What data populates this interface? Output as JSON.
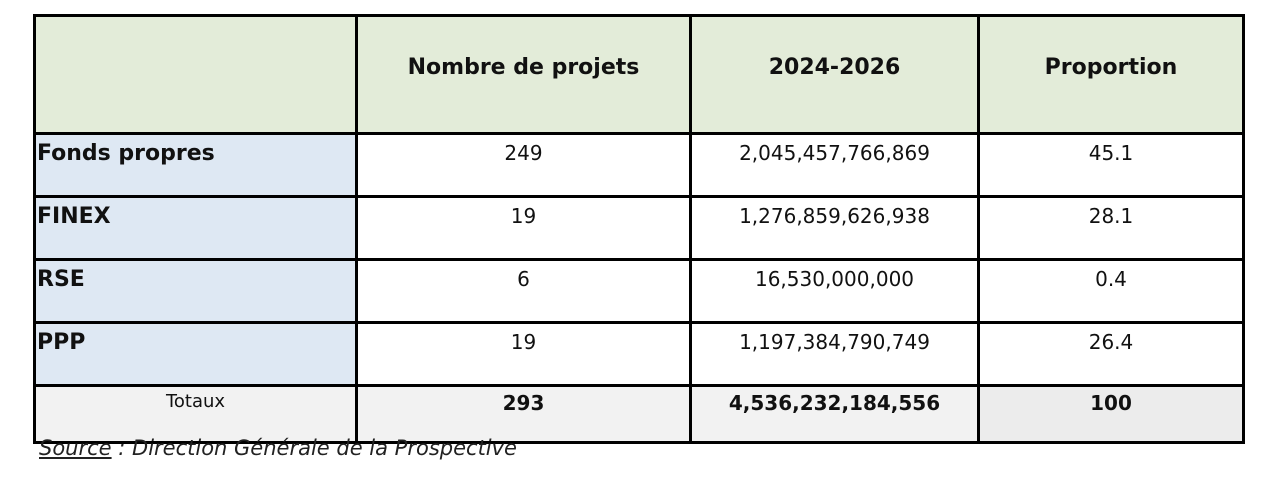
{
  "table": {
    "headers": [
      "",
      "Nombre de projets",
      "2024-2026",
      "Proportion"
    ],
    "rows": [
      {
        "label": "Fonds propres",
        "projets": "249",
        "montant": "2,045,457,766,869",
        "proportion": "45.1"
      },
      {
        "label": "FINEX",
        "projets": "19",
        "montant": "1,276,859,626,938",
        "proportion": "28.1"
      },
      {
        "label": "RSE",
        "projets": "6",
        "montant": "16,530,000,000",
        "proportion": "0.4"
      },
      {
        "label": "PPP",
        "projets": "19",
        "montant": "1,197,384,790,749",
        "proportion": "26.4"
      }
    ],
    "totals": {
      "label": "Totaux",
      "projets": "293",
      "montant": "4,536,232,184,556",
      "proportion": "100"
    }
  },
  "source": {
    "label": "Source",
    "text": " : Direction Générale de la Prospective"
  },
  "colors": {
    "header_bg": "#e3ecd9",
    "label_bg": "#dee8f3",
    "totals_bg": "#f2f2f2"
  }
}
